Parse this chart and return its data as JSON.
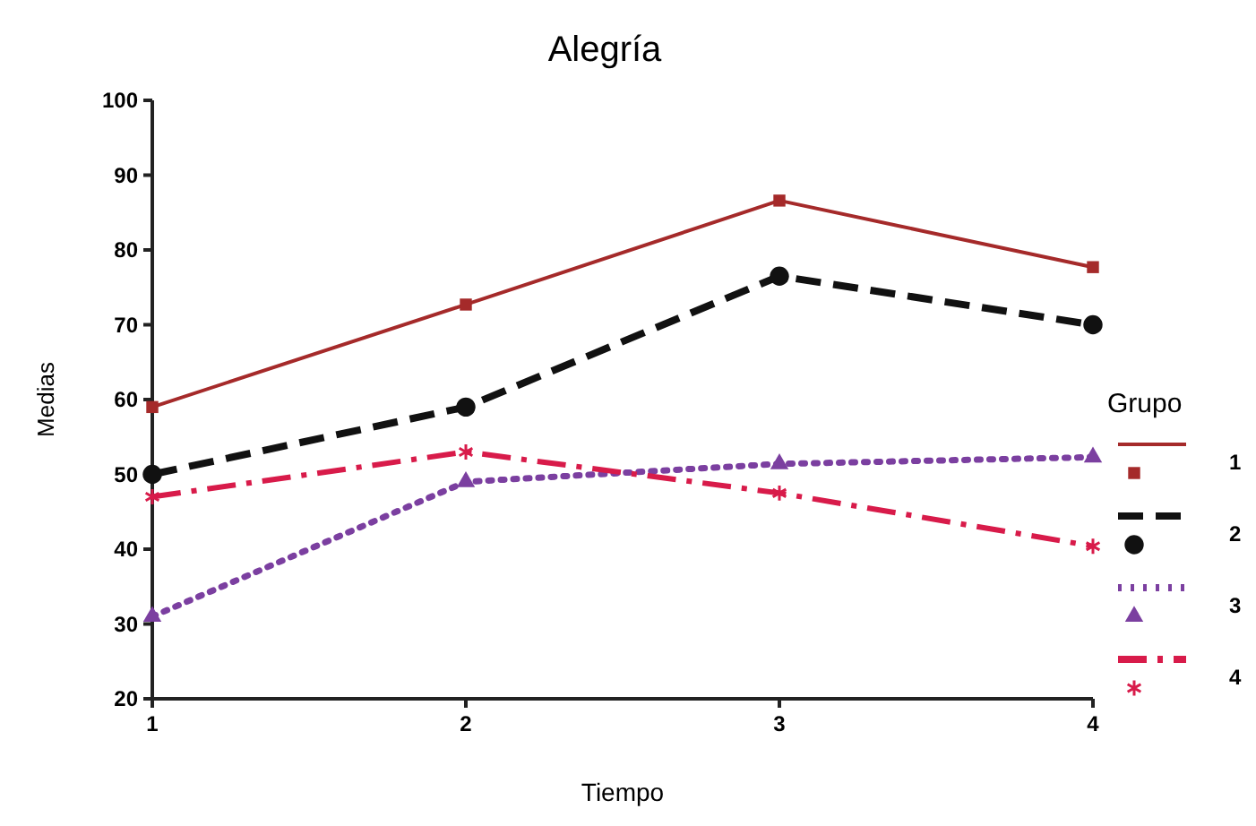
{
  "chart_data": {
    "type": "line",
    "title": "Alegría",
    "xlabel": "Tiempo",
    "ylabel": "Medias",
    "legend_title": "Grupo",
    "legend": "right",
    "grid": false,
    "x": [
      1,
      2,
      3,
      4
    ],
    "xlim": [
      1,
      4
    ],
    "xticks": [
      1,
      2,
      3,
      4
    ],
    "ylim": [
      20,
      100
    ],
    "yticks": [
      20,
      30,
      40,
      50,
      60,
      70,
      80,
      90,
      100
    ],
    "series": [
      {
        "name": "1",
        "color": "#a52a2a",
        "values": [
          59,
          72.7,
          86.6,
          77.7
        ],
        "marker": "square",
        "line_style": "solid"
      },
      {
        "name": "2",
        "color": "#111111",
        "values": [
          50,
          59,
          76.5,
          70
        ],
        "marker": "circle",
        "line_style": "dashed"
      },
      {
        "name": "3",
        "color": "#7b3fa0",
        "values": [
          31,
          49,
          51.4,
          52.3
        ],
        "marker": "triangle",
        "line_style": "dotted"
      },
      {
        "name": "4",
        "color": "#d81b4a",
        "values": [
          47,
          53,
          47.5,
          40.4
        ],
        "marker": "cross",
        "line_style": "dashdot"
      }
    ]
  }
}
